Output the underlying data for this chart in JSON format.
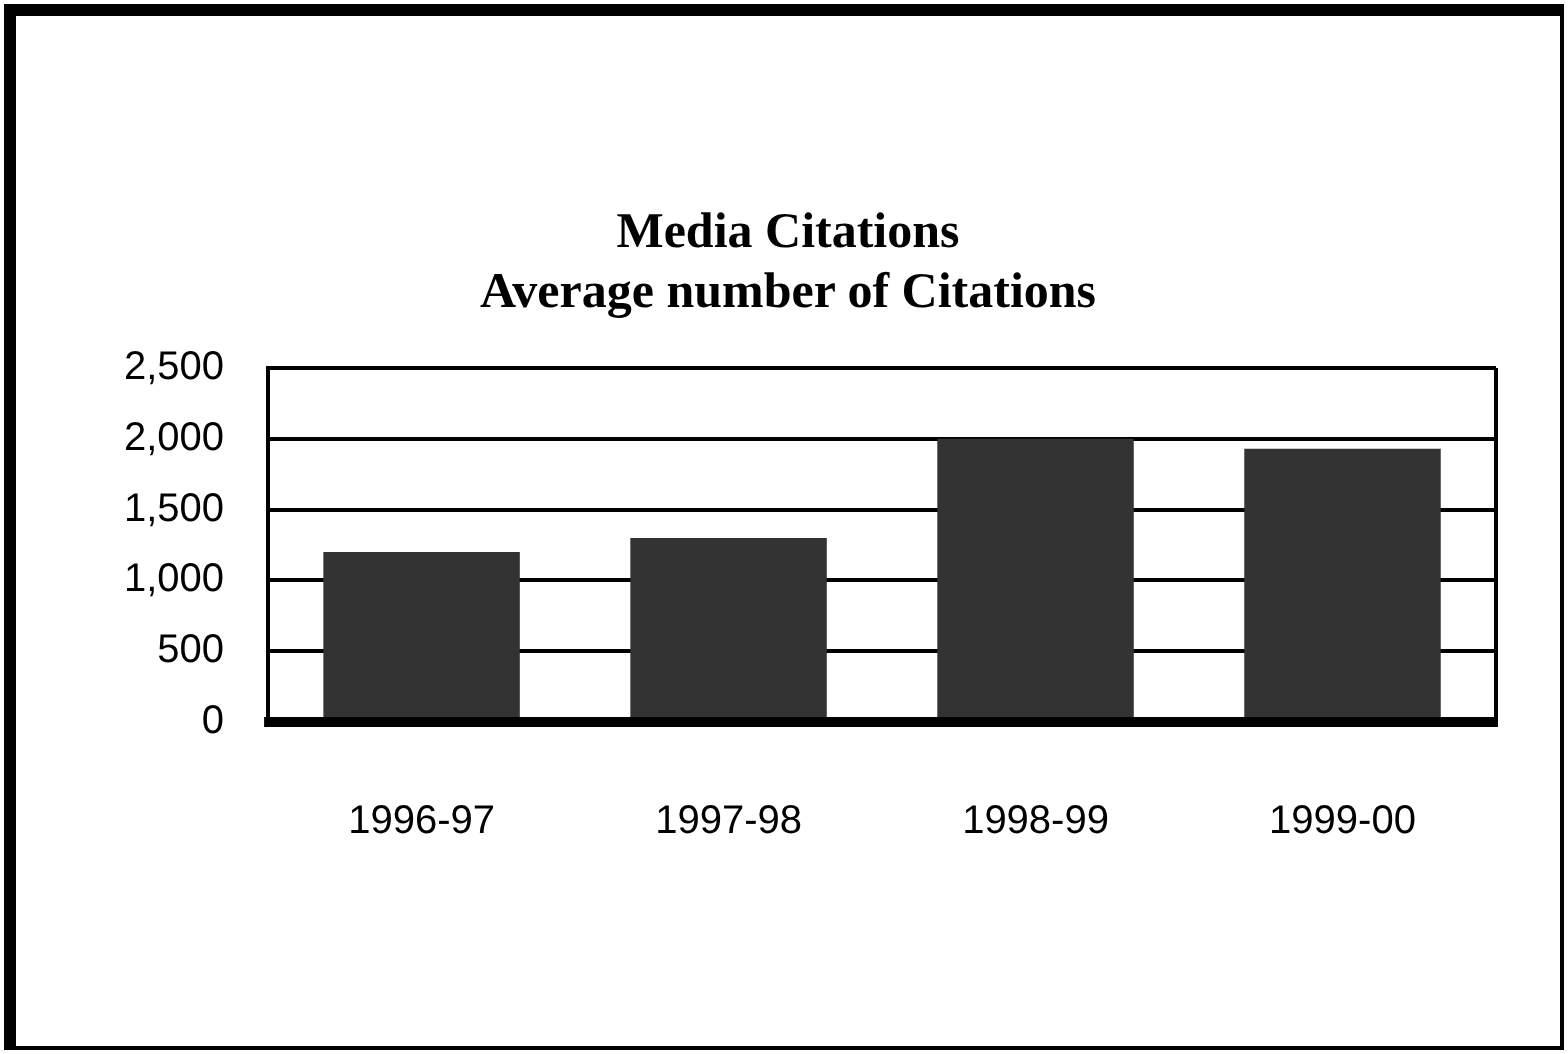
{
  "chart_data": {
    "type": "bar",
    "title": [
      "Media Citations",
      "Average number of Citations"
    ],
    "categories": [
      "1996-97",
      "1997-98",
      "1998-99",
      "1999-00"
    ],
    "values": [
      1200,
      1300,
      2000,
      1930
    ],
    "color": "#333333",
    "ylim": [
      0,
      2500
    ],
    "yticks": [
      {
        "value": 0,
        "label": "0"
      },
      {
        "value": 500,
        "label": "500"
      },
      {
        "value": 1000,
        "label": "1,000"
      },
      {
        "value": 1500,
        "label": "1,500"
      },
      {
        "value": 2000,
        "label": "2,000"
      },
      {
        "value": 2500,
        "label": "2,500"
      }
    ],
    "grid": "y",
    "legend": false
  }
}
